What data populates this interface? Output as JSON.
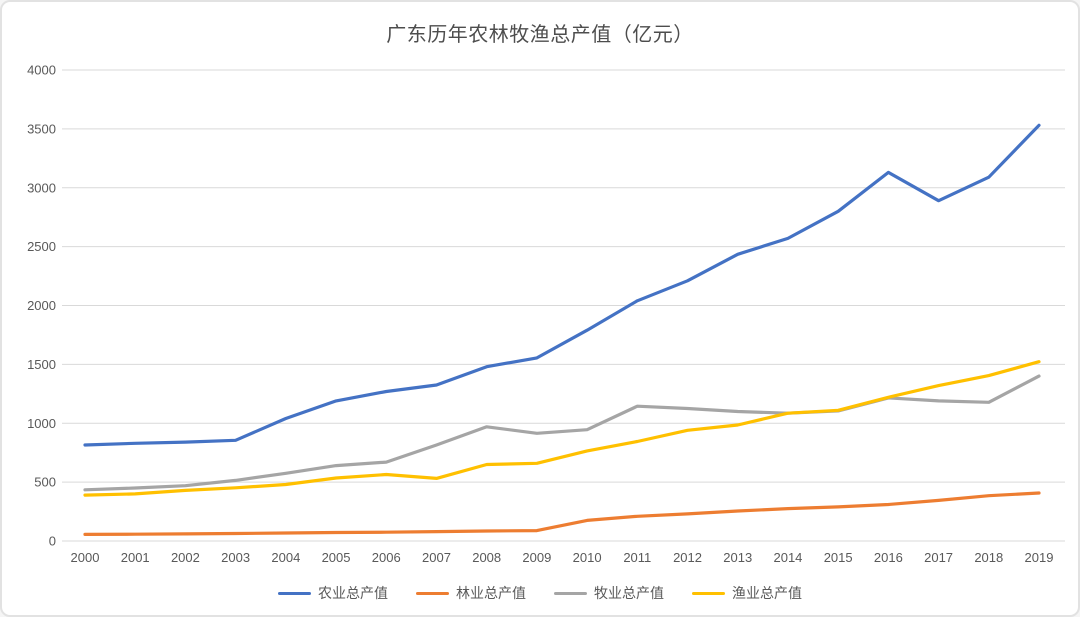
{
  "window": {
    "background": "#ffffff",
    "frame_border_color": "#e2e2e2"
  },
  "chart_data": {
    "type": "line",
    "title": "广东历年农林牧渔总产值（亿元）",
    "x": [
      "2000",
      "2001",
      "2002",
      "2003",
      "2004",
      "2005",
      "2006",
      "2007",
      "2008",
      "2009",
      "2010",
      "2011",
      "2012",
      "2013",
      "2014",
      "2015",
      "2016",
      "2017",
      "2018",
      "2019"
    ],
    "series": [
      {
        "name": "农业总产值",
        "color": "#4472C4",
        "values": [
          815,
          830,
          840,
          855,
          1040,
          1190,
          1270,
          1325,
          1480,
          1555,
          1790,
          2040,
          2210,
          2435,
          2570,
          2800,
          3130,
          2890,
          3090,
          3530
        ]
      },
      {
        "name": "林业总产值",
        "color": "#ED7D31",
        "values": [
          56,
          58,
          60,
          64,
          68,
          72,
          75,
          80,
          85,
          88,
          175,
          210,
          230,
          255,
          275,
          290,
          310,
          345,
          385,
          408
        ]
      },
      {
        "name": "牧业总产值",
        "color": "#A5A5A5",
        "values": [
          435,
          450,
          470,
          515,
          575,
          640,
          670,
          815,
          970,
          915,
          945,
          1145,
          1125,
          1100,
          1085,
          1105,
          1215,
          1190,
          1178,
          1400
        ]
      },
      {
        "name": "渔业总产值",
        "color": "#FFC000",
        "values": [
          390,
          400,
          430,
          452,
          480,
          535,
          565,
          532,
          650,
          660,
          765,
          845,
          940,
          985,
          1085,
          1110,
          1220,
          1320,
          1405,
          1523
        ]
      }
    ],
    "ylim": [
      0,
      4000
    ],
    "yticks": [
      0,
      500,
      1000,
      1500,
      2000,
      2500,
      3000,
      3500,
      4000
    ],
    "xlabel": "",
    "ylabel": "",
    "grid": true,
    "legend_position": "bottom",
    "gridline_color": "#D9D9D9",
    "axis_label_color": "#595959"
  }
}
